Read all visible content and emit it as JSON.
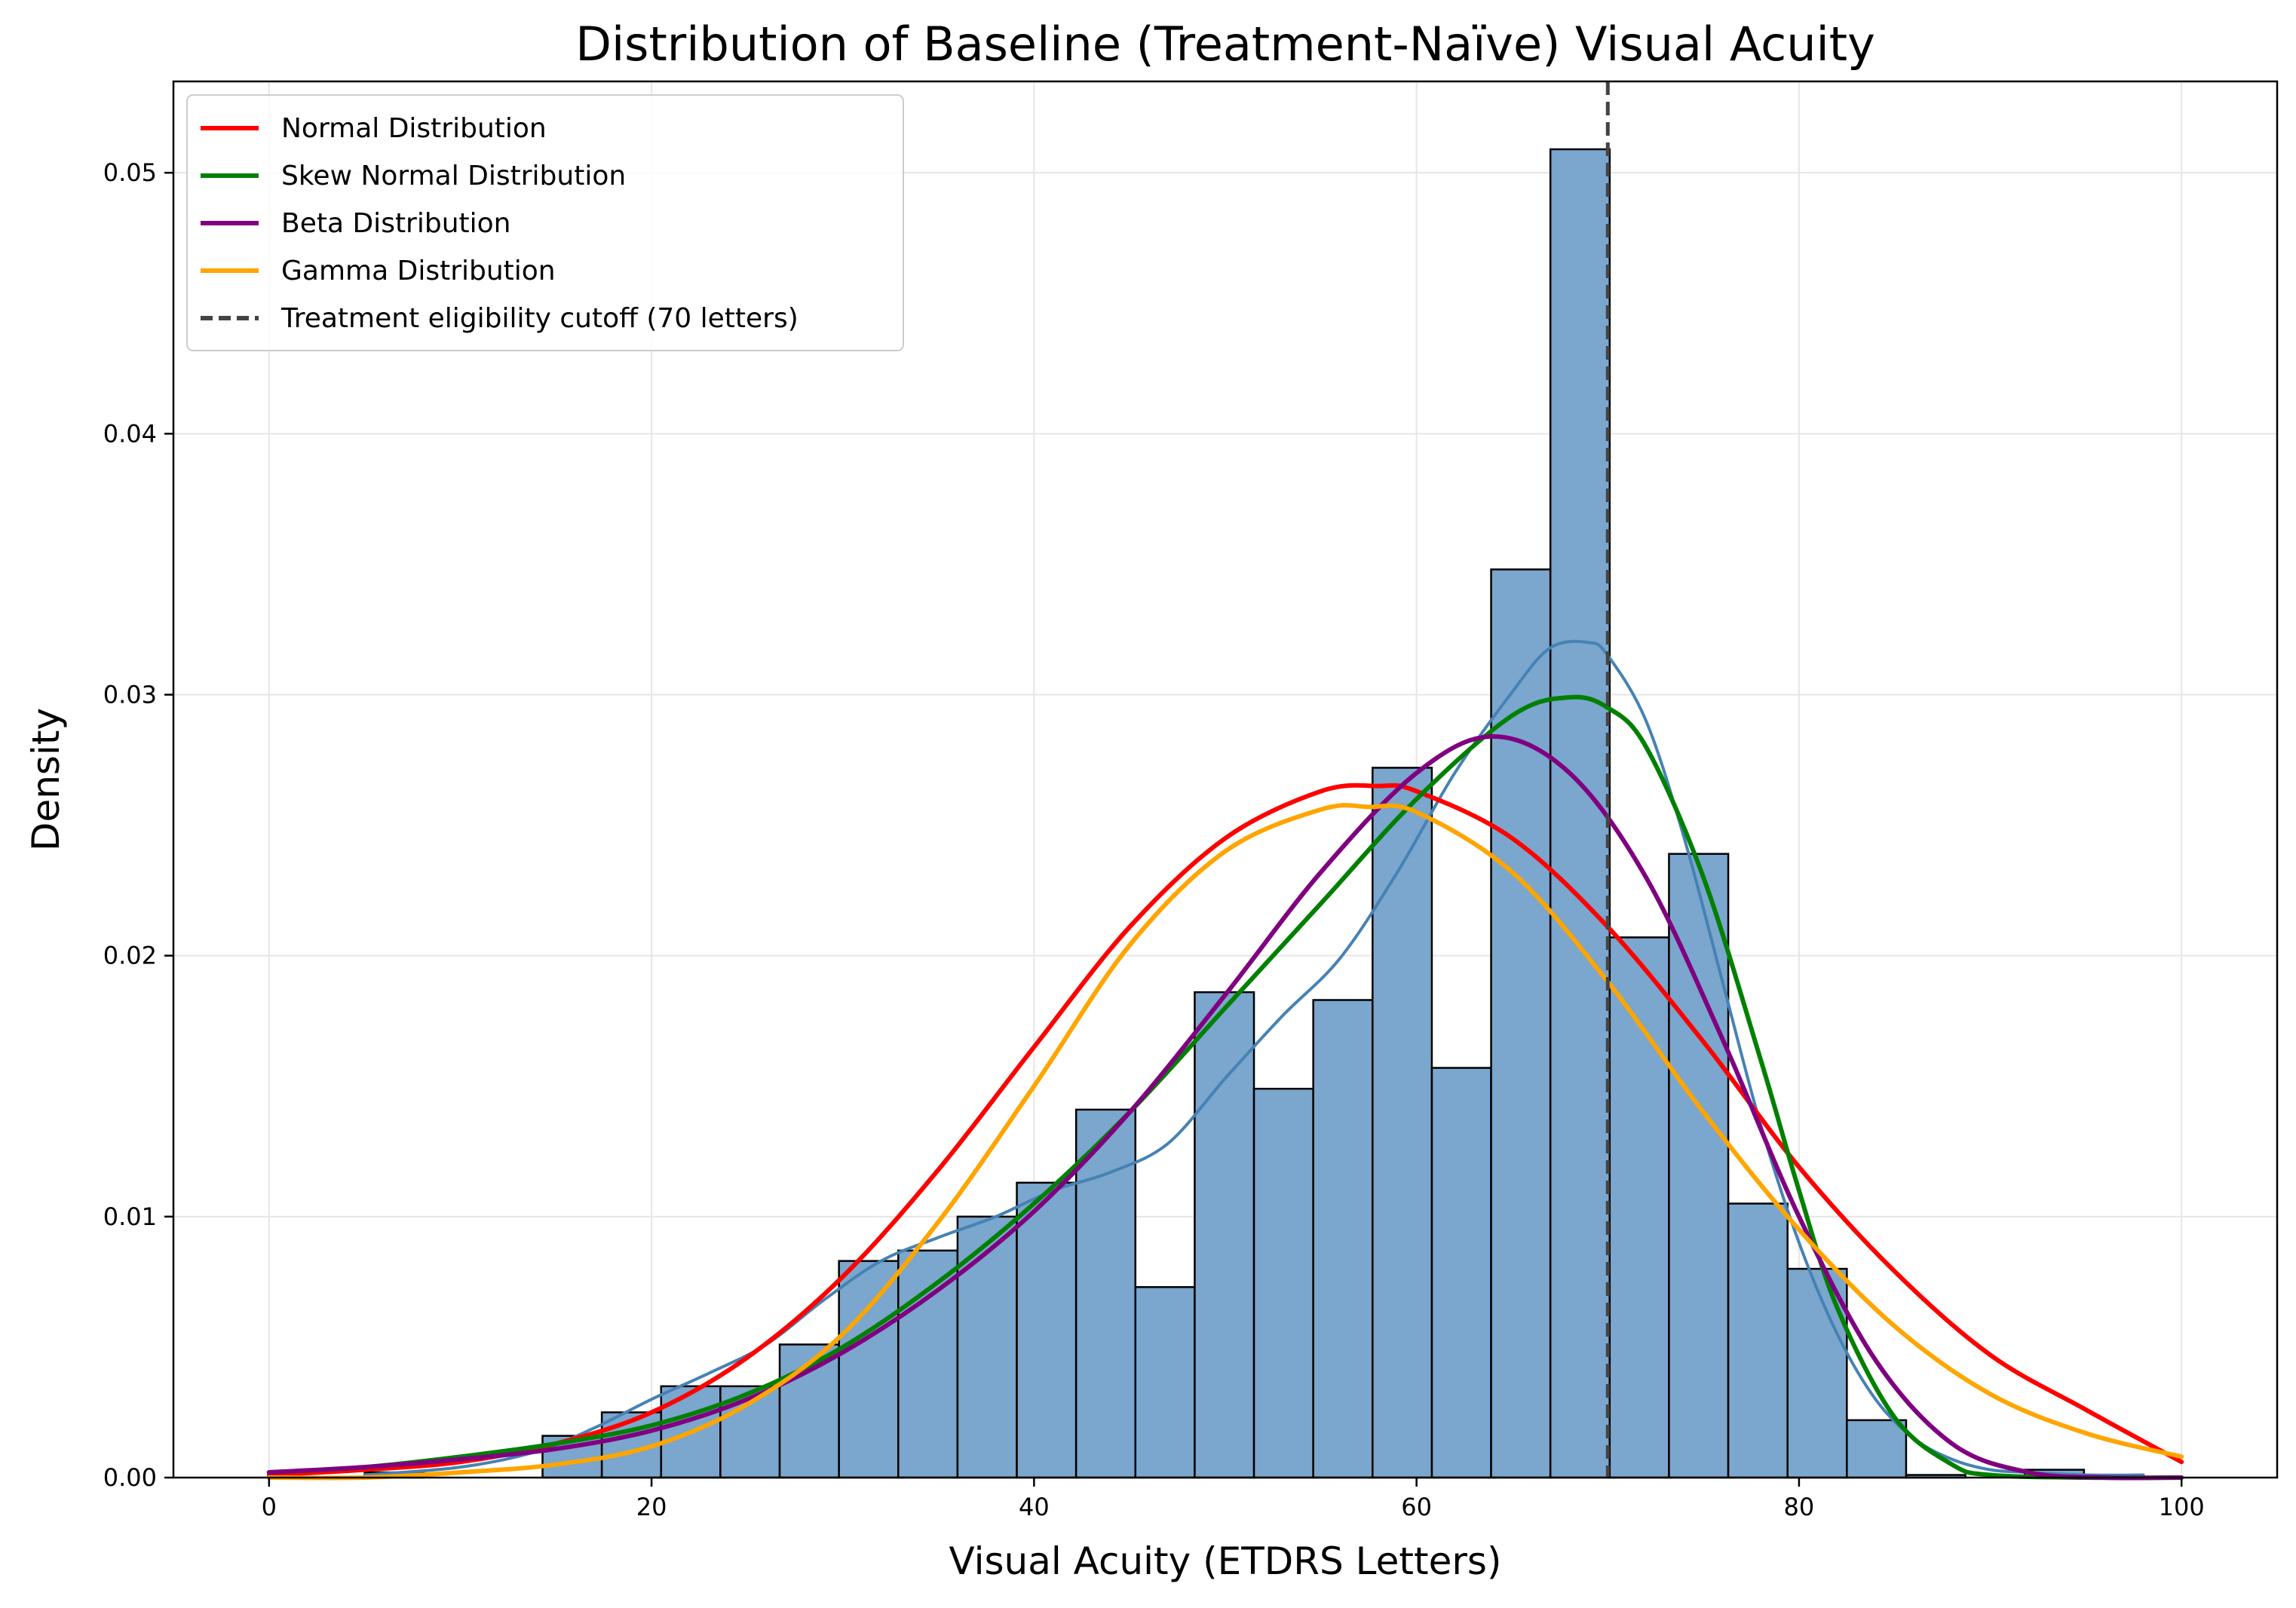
{
  "chart_data": {
    "type": "histogram",
    "title": "Distribution of Baseline (Treatment-Naïve) Visual Acuity",
    "xlabel": "Visual Acuity (ETDRS Letters)",
    "ylabel": "Density",
    "xlim": [
      -5,
      105
    ],
    "ylim": [
      0,
      0.0535
    ],
    "x_ticks": [
      0,
      20,
      40,
      60,
      80,
      100
    ],
    "x_tick_labels": [
      "0",
      "20",
      "40",
      "60",
      "80",
      "100"
    ],
    "y_ticks": [
      0.0,
      0.01,
      0.02,
      0.03,
      0.04,
      0.05
    ],
    "y_tick_labels": [
      "0.00",
      "0.01",
      "0.02",
      "0.03",
      "0.04",
      "0.05"
    ],
    "grid": true,
    "legend_position": "top-left",
    "histogram": {
      "color": "#7BA6CD",
      "edge_color": "#000000",
      "bins": [
        {
          "x0": 5.0,
          "x1": 8.1,
          "density": 0.0002
        },
        {
          "x0": 14.3,
          "x1": 17.4,
          "density": 0.0016
        },
        {
          "x0": 17.4,
          "x1": 20.5,
          "density": 0.0025
        },
        {
          "x0": 20.5,
          "x1": 23.6,
          "density": 0.0035
        },
        {
          "x0": 23.6,
          "x1": 26.7,
          "density": 0.0035
        },
        {
          "x0": 26.7,
          "x1": 29.8,
          "density": 0.0051
        },
        {
          "x0": 29.8,
          "x1": 32.9,
          "density": 0.0083
        },
        {
          "x0": 32.9,
          "x1": 36.0,
          "density": 0.0087
        },
        {
          "x0": 36.0,
          "x1": 39.1,
          "density": 0.01
        },
        {
          "x0": 39.1,
          "x1": 42.2,
          "density": 0.0113
        },
        {
          "x0": 42.2,
          "x1": 45.3,
          "density": 0.0141
        },
        {
          "x0": 45.3,
          "x1": 48.4,
          "density": 0.0073
        },
        {
          "x0": 48.4,
          "x1": 51.5,
          "density": 0.0186
        },
        {
          "x0": 51.5,
          "x1": 54.6,
          "density": 0.0149
        },
        {
          "x0": 54.6,
          "x1": 57.7,
          "density": 0.0183
        },
        {
          "x0": 57.7,
          "x1": 60.8,
          "density": 0.0272
        },
        {
          "x0": 60.8,
          "x1": 63.9,
          "density": 0.0157
        },
        {
          "x0": 63.9,
          "x1": 67.0,
          "density": 0.0348
        },
        {
          "x0": 67.0,
          "x1": 70.1,
          "density": 0.0509
        },
        {
          "x0": 70.1,
          "x1": 73.2,
          "density": 0.0207
        },
        {
          "x0": 73.2,
          "x1": 76.3,
          "density": 0.0239
        },
        {
          "x0": 76.3,
          "x1": 79.4,
          "density": 0.0105
        },
        {
          "x0": 79.4,
          "x1": 82.5,
          "density": 0.008
        },
        {
          "x0": 82.5,
          "x1": 85.6,
          "density": 0.0022
        },
        {
          "x0": 85.6,
          "x1": 88.7,
          "density": 0.0001
        },
        {
          "x0": 91.8,
          "x1": 94.9,
          "density": 0.0003
        }
      ]
    },
    "series": [
      {
        "name": "",
        "kind": "kde",
        "color": "#4682B4",
        "x": [
          5,
          10,
          14,
          17,
          20,
          23,
          26,
          29,
          32,
          35,
          38,
          41,
          44,
          47,
          50,
          53,
          56,
          59,
          62,
          65,
          67,
          69,
          70,
          72,
          74,
          76,
          78,
          80,
          82,
          84,
          86,
          88,
          90,
          92,
          95,
          98
        ],
        "y": [
          0.0001,
          0.0004,
          0.001,
          0.0019,
          0.003,
          0.004,
          0.0051,
          0.0068,
          0.0083,
          0.0092,
          0.01,
          0.011,
          0.0117,
          0.0128,
          0.0153,
          0.0177,
          0.0199,
          0.0232,
          0.027,
          0.0301,
          0.0318,
          0.032,
          0.0315,
          0.029,
          0.0245,
          0.019,
          0.0135,
          0.009,
          0.0055,
          0.003,
          0.0015,
          0.0007,
          0.0003,
          0.0002,
          0.0001,
          0.0001
        ]
      },
      {
        "name": "Normal Distribution",
        "kind": "normal",
        "color": "#FF0000",
        "x": [
          0,
          5,
          10,
          15,
          20,
          25,
          30,
          35,
          40,
          45,
          50,
          55,
          58,
          60,
          65,
          70,
          75,
          80,
          85,
          90,
          95,
          100
        ],
        "y": [
          0.0001,
          0.0003,
          0.0006,
          0.0013,
          0.0025,
          0.0046,
          0.0077,
          0.0118,
          0.0165,
          0.0211,
          0.0245,
          0.0263,
          0.0265,
          0.0263,
          0.0245,
          0.0211,
          0.0167,
          0.0119,
          0.0079,
          0.0047,
          0.0026,
          0.0006
        ]
      },
      {
        "name": "Skew Normal Distribution",
        "kind": "skew-normal",
        "color": "#008000",
        "x": [
          0,
          5,
          10,
          15,
          20,
          25,
          30,
          35,
          40,
          45,
          50,
          55,
          60,
          65,
          68,
          70,
          72,
          75,
          78,
          80,
          82,
          85,
          88,
          90,
          95,
          100
        ],
        "y": [
          0.0002,
          0.0004,
          0.0008,
          0.0013,
          0.002,
          0.0032,
          0.005,
          0.0075,
          0.0105,
          0.014,
          0.018,
          0.022,
          0.026,
          0.0292,
          0.0299,
          0.0295,
          0.028,
          0.023,
          0.016,
          0.011,
          0.0065,
          0.0023,
          0.0005,
          0.0001,
          0.0,
          0.0
        ]
      },
      {
        "name": "Beta Distribution",
        "kind": "beta",
        "color": "#800080",
        "x": [
          0,
          5,
          10,
          15,
          20,
          25,
          30,
          35,
          40,
          45,
          50,
          55,
          60,
          64,
          68,
          72,
          76,
          80,
          84,
          88,
          92,
          96,
          100
        ],
        "y": [
          0.0002,
          0.0004,
          0.0007,
          0.0011,
          0.0018,
          0.003,
          0.0048,
          0.0072,
          0.0102,
          0.014,
          0.0185,
          0.0232,
          0.027,
          0.0284,
          0.027,
          0.023,
          0.0168,
          0.01,
          0.0045,
          0.0013,
          0.0002,
          0.0,
          0.0
        ]
      },
      {
        "name": "Gamma Distribution",
        "kind": "gamma",
        "color": "#FFA500",
        "x": [
          0,
          5,
          10,
          15,
          20,
          25,
          30,
          35,
          40,
          45,
          50,
          55,
          57.5,
          60,
          65,
          70,
          75,
          80,
          85,
          90,
          95,
          100
        ],
        "y": [
          0.0,
          0.0,
          0.0002,
          0.0005,
          0.0012,
          0.0028,
          0.0055,
          0.0098,
          0.015,
          0.0204,
          0.024,
          0.0256,
          0.0257,
          0.0255,
          0.0232,
          0.019,
          0.014,
          0.0095,
          0.0058,
          0.0032,
          0.0017,
          0.0008
        ]
      }
    ],
    "reference_line": {
      "x": 70,
      "label": "Treatment eligibility cutoff (70 letters)",
      "color": "#444444",
      "style": "dashed"
    },
    "legend": [
      {
        "label": "Normal Distribution",
        "color": "#FF0000",
        "style": "solid"
      },
      {
        "label": "Skew Normal Distribution",
        "color": "#008000",
        "style": "solid"
      },
      {
        "label": "Beta Distribution",
        "color": "#800080",
        "style": "solid"
      },
      {
        "label": "Gamma Distribution",
        "color": "#FFA500",
        "style": "solid"
      },
      {
        "label": "Treatment eligibility cutoff (70 letters)",
        "color": "#444444",
        "style": "dashed"
      }
    ]
  }
}
